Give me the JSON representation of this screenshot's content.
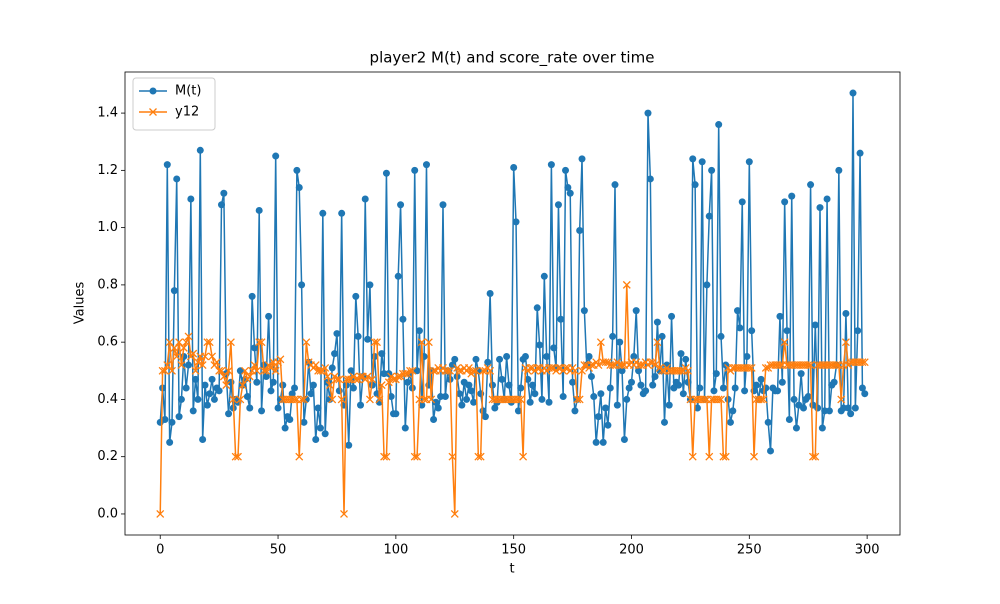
{
  "chart_data": {
    "type": "line",
    "title": "player2 M(t) and score_rate over time",
    "x_label": "t",
    "y_label": "Values",
    "xlim": [
      -14.95,
      313.95
    ],
    "ylim": [
      -0.0735,
      1.5435
    ],
    "xticks": [
      0,
      50,
      100,
      150,
      200,
      250,
      300
    ],
    "yticks": [
      {
        "value": 0,
        "label": "0.0"
      },
      0.2,
      0.4,
      0.6,
      0.8,
      {
        "value": 1,
        "label": "1.0"
      },
      1.2,
      1.4
    ],
    "grid": false,
    "legend": "upper left",
    "x": [
      0,
      1,
      2,
      3,
      4,
      5,
      6,
      7,
      8,
      9,
      10,
      11,
      12,
      13,
      14,
      15,
      16,
      17,
      18,
      19,
      20,
      21,
      22,
      23,
      24,
      25,
      26,
      27,
      28,
      29,
      30,
      31,
      32,
      33,
      34,
      35,
      36,
      37,
      38,
      39,
      40,
      41,
      42,
      43,
      44,
      45,
      46,
      47,
      48,
      49,
      50,
      51,
      52,
      53,
      54,
      55,
      56,
      57,
      58,
      59,
      60,
      61,
      62,
      63,
      64,
      65,
      66,
      67,
      68,
      69,
      70,
      71,
      72,
      73,
      74,
      75,
      76,
      77,
      78,
      79,
      80,
      81,
      82,
      83,
      84,
      85,
      86,
      87,
      88,
      89,
      90,
      91,
      92,
      93,
      94,
      95,
      96,
      97,
      98,
      99,
      100,
      101,
      102,
      103,
      104,
      105,
      106,
      107,
      108,
      109,
      110,
      111,
      112,
      113,
      114,
      115,
      116,
      117,
      118,
      119,
      120,
      121,
      122,
      123,
      124,
      125,
      126,
      127,
      128,
      129,
      130,
      131,
      132,
      133,
      134,
      135,
      136,
      137,
      138,
      139,
      140,
      141,
      142,
      143,
      144,
      145,
      146,
      147,
      148,
      149,
      150,
      151,
      152,
      153,
      154,
      155,
      156,
      157,
      158,
      159,
      160,
      161,
      162,
      163,
      164,
      165,
      166,
      167,
      168,
      169,
      170,
      171,
      172,
      173,
      174,
      175,
      176,
      177,
      178,
      179,
      180,
      181,
      182,
      183,
      184,
      185,
      186,
      187,
      188,
      189,
      190,
      191,
      192,
      193,
      194,
      195,
      196,
      197,
      198,
      199,
      200,
      201,
      202,
      203,
      204,
      205,
      206,
      207,
      208,
      209,
      210,
      211,
      212,
      213,
      214,
      215,
      216,
      217,
      218,
      219,
      220,
      221,
      222,
      223,
      224,
      225,
      226,
      227,
      228,
      229,
      230,
      231,
      232,
      233,
      234,
      235,
      236,
      237,
      238,
      239,
      240,
      241,
      242,
      243,
      244,
      245,
      246,
      247,
      248,
      249,
      250,
      251,
      252,
      253,
      254,
      255,
      256,
      257,
      258,
      259,
      260,
      261,
      262,
      263,
      264,
      265,
      266,
      267,
      268,
      269,
      270,
      271,
      272,
      273,
      274,
      275,
      276,
      277,
      278,
      279,
      280,
      281,
      282,
      283,
      284,
      285,
      286,
      287,
      288,
      289,
      290,
      291,
      292,
      293,
      294,
      295,
      296,
      297,
      298,
      299
    ],
    "series": [
      {
        "name": "M(t)",
        "color": "#1f77b4",
        "marker": "o",
        "values": [
          0.32,
          0.44,
          0.33,
          1.22,
          0.25,
          0.32,
          0.78,
          1.17,
          0.34,
          0.4,
          0.55,
          0.44,
          0.52,
          1.1,
          0.36,
          0.47,
          0.4,
          1.27,
          0.26,
          0.45,
          0.38,
          0.42,
          0.47,
          0.4,
          0.44,
          0.43,
          1.08,
          1.12,
          0.49,
          0.35,
          0.46,
          0.37,
          0.4,
          0.39,
          0.5,
          0.45,
          0.47,
          0.41,
          0.37,
          0.76,
          0.58,
          0.46,
          1.06,
          0.36,
          0.52,
          0.48,
          0.69,
          0.43,
          0.46,
          1.25,
          0.37,
          0.4,
          0.45,
          0.3,
          0.34,
          0.33,
          0.42,
          0.44,
          1.2,
          1.14,
          0.8,
          0.32,
          0.4,
          0.53,
          0.42,
          0.45,
          0.26,
          0.37,
          0.3,
          1.05,
          0.28,
          0.46,
          0.4,
          0.51,
          0.56,
          0.63,
          0.43,
          1.05,
          0.38,
          0.45,
          0.24,
          0.5,
          0.44,
          0.76,
          0.62,
          0.38,
          0.48,
          1.1,
          0.61,
          0.8,
          0.45,
          0.55,
          0.42,
          0.39,
          0.56,
          0.49,
          1.19,
          0.49,
          0.41,
          0.35,
          0.35,
          0.83,
          1.08,
          0.68,
          0.3,
          0.46,
          0.49,
          0.44,
          1.2,
          0.5,
          0.64,
          0.38,
          0.55,
          1.22,
          0.45,
          0.5,
          0.33,
          0.39,
          0.37,
          0.41,
          1.08,
          0.41,
          0.5,
          0.47,
          0.52,
          0.54,
          0.48,
          0.42,
          0.38,
          0.46,
          0.4,
          0.45,
          0.43,
          0.39,
          0.54,
          0.5,
          0.42,
          0.36,
          0.34,
          0.53,
          0.77,
          0.45,
          0.37,
          0.39,
          0.54,
          0.47,
          0.4,
          0.55,
          0.45,
          0.39,
          1.21,
          1.02,
          0.36,
          0.44,
          0.54,
          0.55,
          0.47,
          0.39,
          0.45,
          0.42,
          0.72,
          0.59,
          0.4,
          0.83,
          0.55,
          0.39,
          1.22,
          0.58,
          0.51,
          1.08,
          0.68,
          0.41,
          1.2,
          1.14,
          1.12,
          0.46,
          0.36,
          0.4,
          0.99,
          1.24,
          0.71,
          0.52,
          0.55,
          0.48,
          0.41,
          0.25,
          0.34,
          0.42,
          0.25,
          0.37,
          0.31,
          0.44,
          0.62,
          1.15,
          0.38,
          0.6,
          0.5,
          0.26,
          0.4,
          0.44,
          0.46,
          0.55,
          0.71,
          0.5,
          0.45,
          0.42,
          0.43,
          1.4,
          1.17,
          0.45,
          0.48,
          0.67,
          0.5,
          0.62,
          0.32,
          0.52,
          0.38,
          0.69,
          0.44,
          0.46,
          0.45,
          0.56,
          0.42,
          0.54,
          0.46,
          0.4,
          1.24,
          1.15,
          0.37,
          0.44,
          1.23,
          0.4,
          0.8,
          1.04,
          1.2,
          0.43,
          0.49,
          1.36,
          0.62,
          0.44,
          0.52,
          0.4,
          0.32,
          0.36,
          0.44,
          0.71,
          0.65,
          1.09,
          0.43,
          0.55,
          1.23,
          0.64,
          0.43,
          0.45,
          0.4,
          0.47,
          0.43,
          0.44,
          0.32,
          0.22,
          0.44,
          0.43,
          0.43,
          0.69,
          0.46,
          1.09,
          0.64,
          0.33,
          1.11,
          0.4,
          0.3,
          0.38,
          0.49,
          0.37,
          0.4,
          0.41,
          1.15,
          0.38,
          0.66,
          0.37,
          1.07,
          0.3,
          0.36,
          1.1,
          0.36,
          0.45,
          0.46,
          0.52,
          1.2,
          0.36,
          0.37,
          0.7,
          0.37,
          0.35,
          1.47,
          0.37,
          0.64,
          1.26,
          0.44,
          0.42
        ]
      },
      {
        "name": "y12",
        "color": "#ff7f0e",
        "marker": "x",
        "values": [
          0.0,
          0.5,
          0.5,
          0.52,
          0.6,
          0.5,
          0.58,
          0.55,
          0.6,
          0.52,
          0.58,
          0.6,
          0.62,
          0.55,
          0.56,
          0.5,
          0.53,
          0.55,
          0.52,
          0.55,
          0.6,
          0.6,
          0.55,
          0.52,
          0.53,
          0.5,
          0.5,
          0.48,
          0.45,
          0.5,
          0.6,
          0.4,
          0.2,
          0.2,
          0.4,
          0.45,
          0.5,
          0.47,
          0.48,
          0.5,
          0.52,
          0.5,
          0.6,
          0.6,
          0.5,
          0.5,
          0.52,
          0.51,
          0.53,
          0.5,
          0.53,
          0.54,
          0.4,
          0.4,
          0.4,
          0.4,
          0.4,
          0.4,
          0.4,
          0.2,
          0.4,
          0.4,
          0.6,
          0.53,
          0.52,
          0.51,
          0.52,
          0.5,
          0.5,
          0.5,
          0.51,
          0.48,
          0.45,
          0.4,
          0.48,
          0.47,
          0.47,
          0.4,
          0.0,
          0.47,
          0.47,
          0.47,
          0.48,
          0.47,
          0.47,
          0.48,
          0.48,
          0.47,
          0.48,
          0.4,
          0.47,
          0.6,
          0.6,
          0.4,
          0.45,
          0.2,
          0.2,
          0.46,
          0.48,
          0.47,
          0.47,
          0.48,
          0.48,
          0.49,
          0.49,
          0.49,
          0.5,
          0.5,
          0.2,
          0.2,
          0.4,
          0.6,
          0.4,
          0.4,
          0.6,
          0.4,
          0.5,
          0.5,
          0.51,
          0.5,
          0.51,
          0.5,
          0.5,
          0.5,
          0.2,
          0.0,
          0.51,
          0.5,
          0.5,
          0.51,
          0.5,
          0.51,
          0.49,
          0.5,
          0.5,
          0.2,
          0.2,
          0.5,
          0.5,
          0.51,
          0.5,
          0.4,
          0.4,
          0.4,
          0.4,
          0.4,
          0.4,
          0.4,
          0.4,
          0.4,
          0.4,
          0.4,
          0.4,
          0.4,
          0.2,
          0.51,
          0.5,
          0.51,
          0.51,
          0.5,
          0.51,
          0.51,
          0.5,
          0.51,
          0.5,
          0.51,
          0.51,
          0.51,
          0.5,
          0.51,
          0.51,
          0.5,
          0.51,
          0.51,
          0.5,
          0.51,
          0.5,
          0.4,
          0.4,
          0.5,
          0.52,
          0.52,
          0.51,
          0.52,
          0.52,
          0.53,
          0.52,
          0.6,
          0.53,
          0.53,
          0.53,
          0.52,
          0.52,
          0.52,
          0.53,
          0.52,
          0.52,
          0.52,
          0.8,
          0.52,
          0.53,
          0.52,
          0.53,
          0.52,
          0.52,
          0.52,
          0.53,
          0.52,
          0.53,
          0.53,
          0.52,
          0.6,
          0.51,
          0.5,
          0.5,
          0.51,
          0.5,
          0.5,
          0.5,
          0.5,
          0.5,
          0.5,
          0.5,
          0.51,
          0.5,
          0.4,
          0.2,
          0.4,
          0.4,
          0.4,
          0.4,
          0.4,
          0.4,
          0.2,
          0.4,
          0.4,
          0.4,
          0.4,
          0.4,
          0.2,
          0.2,
          0.51,
          0.5,
          0.51,
          0.51,
          0.51,
          0.51,
          0.51,
          0.51,
          0.51,
          0.51,
          0.51,
          0.2,
          0.4,
          0.4,
          0.4,
          0.4,
          0.51,
          0.51,
          0.52,
          0.52,
          0.52,
          0.52,
          0.52,
          0.52,
          0.6,
          0.52,
          0.52,
          0.52,
          0.52,
          0.52,
          0.52,
          0.52,
          0.52,
          0.52,
          0.52,
          0.52,
          0.2,
          0.2,
          0.52,
          0.52,
          0.52,
          0.52,
          0.52,
          0.52,
          0.52,
          0.52,
          0.52,
          0.52,
          0.4,
          0.52,
          0.6,
          0.52,
          0.53,
          0.53,
          0.53,
          0.53,
          0.53,
          0.53,
          0.53
        ]
      }
    ]
  }
}
